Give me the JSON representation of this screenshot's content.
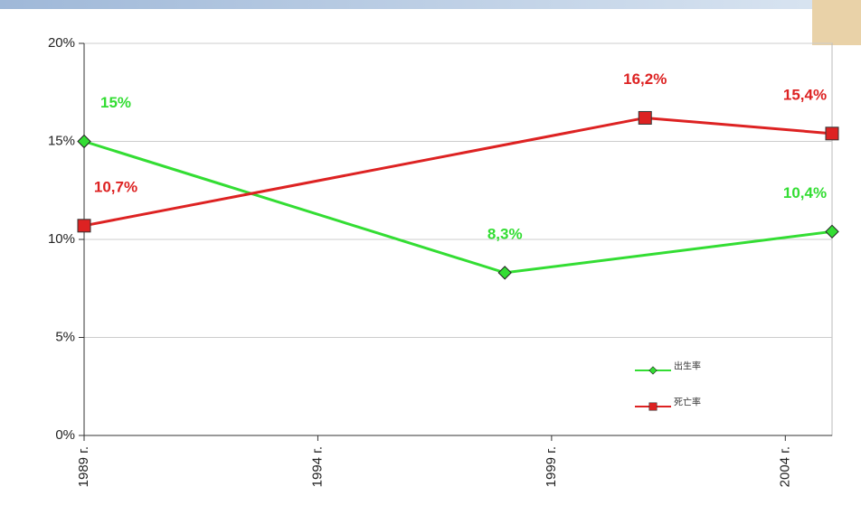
{
  "chart_data": {
    "type": "line",
    "xlim": [
      1989,
      2005
    ],
    "xticks": [
      {
        "value": 1989,
        "label": "1989 г."
      },
      {
        "value": 1994,
        "label": "1994 г."
      },
      {
        "value": 1999,
        "label": "1999 г."
      },
      {
        "value": 2004,
        "label": "2004 г."
      }
    ],
    "ylim": [
      0,
      20
    ],
    "yticks": [
      {
        "value": 0,
        "label": "0%"
      },
      {
        "value": 5,
        "label": "5%"
      },
      {
        "value": 10,
        "label": "10%"
      },
      {
        "value": 15,
        "label": "15%"
      },
      {
        "value": 20,
        "label": "20%"
      }
    ],
    "grid": true,
    "series": [
      {
        "name": "出生率",
        "color": "#33dd33",
        "marker": "diamond",
        "x": [
          1989,
          1998,
          2005
        ],
        "values": [
          15,
          8.3,
          10.4
        ],
        "value_labels": [
          "15%",
          "8,3%",
          "10,4%"
        ]
      },
      {
        "name": "死亡率",
        "color": "#dd2222",
        "marker": "square",
        "x": [
          1989,
          2001,
          2005
        ],
        "values": [
          10.7,
          16.2,
          15.4
        ],
        "value_labels": [
          "10,7%",
          "16,2%",
          "15,4%"
        ]
      }
    ]
  }
}
